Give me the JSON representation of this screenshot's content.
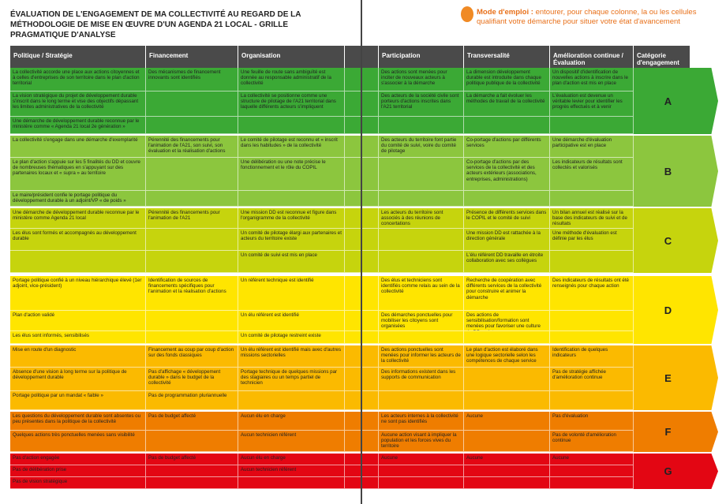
{
  "header": {
    "title": "ÉVALUATION DE L'ENGAGEMENT DE MA COLLECTIVITÉ AU REGARD DE LA MÉTHODOLOGIE DE MISE EN ŒUVRE D'UN AGENDA 21 LOCAL - GRILLE PRAGMATIQUE D'ANALYSE",
    "mode_label": "Mode d'emploi :",
    "mode_text": "entourer, pour chaque colonne, la ou les cellules qualifiant votre démarche pour situer votre état d'avancement"
  },
  "table": {
    "columns": [
      "Politique / Stratégie",
      "Financement",
      "Organisation",
      "Participation",
      "Transversalité",
      "Amélioration continue / Évaluation",
      "Catégorie d'engagement"
    ],
    "bands": [
      {
        "category": "A",
        "color": "#3ba935",
        "rows": [
          [
            "La collectivité accorde une place aux actions citoyennes et à celles d'entreprises de son territoire dans le plan d'action territorial",
            "Des mécanismes de financement innovants sont identifiés",
            "Une feuille de route sans ambiguïté est donnée au responsable administratif de la collectivité",
            "Des actions sont menées pour inciter de nouveaux acteurs à s'associer à la démarche",
            "La dimension développement durable est introduite dans chaque politique publique de la collectivité",
            "Un dispositif d'identification de nouvelles actions à inscrire dans le plan d'action est mis en place"
          ],
          [
            "La vision stratégique du projet de développement durable s'inscrit dans le long terme et vise des objectifs dépassant les limites administratives de la collectivité",
            null,
            "La collectivité se positionne comme une structure de pilotage de l'A21 territorial dans laquelle différents acteurs s'impliquent",
            "Des acteurs de la société civile sont porteurs d'actions inscrites dans l'A21 territorial",
            "La démarche a fait évoluer les méthodes de travail de la collectivité",
            "L'évaluation est devenue un véritable levier pour identifier les progrès effectués et à venir"
          ],
          [
            "Une démarche de développement durable reconnue par le ministère comme « Agenda 21 local 2e génération »",
            null,
            null,
            null,
            null,
            null
          ]
        ]
      },
      {
        "category": "B",
        "color": "#8cc63e",
        "rows": [
          [
            "La collectivité s'engage dans une démarche d'exemplarité",
            "Pérennité des financements pour l'animation de l'A21, son suivi, son évaluation et la réalisation d'actions",
            "Le comité de pilotage est reconnu et « inscrit dans les habitudes » de la collectivité",
            "Des acteurs du territoire font partie du comité de suivi, voire du comité de pilotage",
            "Co-portage d'actions par différents services",
            "Une démarche d'évaluation participative est en place"
          ],
          [
            "Le plan d'action s'appuie sur les 5 finalités du DD et couvre de nombreuses thématiques en s'appuyant sur des partenaires locaux et « supra » au territoire",
            null,
            "Une délibération ou une note précise le fonctionnement et le rôle du COPIL",
            null,
            "Co-portage d'actions par des services de la collectivité et des acteurs extérieurs (associations, entreprises, administrations)",
            "Les indicateurs de résultats sont collectés et valorisés"
          ],
          [
            "Le maire/président confie le portage politique du développement durable à un adjoint/VP « de poids »",
            null,
            null,
            null,
            null,
            null
          ]
        ]
      },
      {
        "category": "C",
        "color": "#c6d40d",
        "rows": [
          [
            "Une démarche de développement durable reconnue par le ministère comme Agenda 21 local",
            "Pérennité des financements pour l'animation de l'A21",
            "Une mission DD est reconnue et figure dans l'organigramme de la collectivité",
            "Les acteurs du territoire sont associés à des réunions de concertations",
            "Présence de différents services dans le COPIL et le comité de suivi",
            "Un bilan annuel est réalisé sur la base des indicateurs de suivi et de résultats"
          ],
          [
            "Les élus sont formés et accompagnés au développement durable",
            null,
            "Un comité de pilotage élargi aux partenaires et acteurs du territoire existe",
            null,
            "Une mission DD est rattachée à la direction générale",
            "Une méthode d'évaluation est définie par les élus"
          ],
          [
            null,
            null,
            "Un comité de suivi est mis en place",
            null,
            "L'élu référent DD travaille en étroite collaboration avec ses collègues",
            null
          ]
        ]
      },
      {
        "category": "D",
        "color": "#ffe500",
        "rows": [
          [
            "Portage politique confié à un niveau hiérarchique élevé (1er adjoint, vice-président)",
            "Identification de sources de financements spécifiques pour l'animation et la réalisation d'actions",
            "Un référent technique est identifié",
            "Des élus et techniciens sont identifiés comme relais au sein de la collectivité",
            "Recherche de coopération avec différents services de la collectivité pour construire et animer la démarche",
            "Des indicateurs de résultats ont été renseignés pour chaque action"
          ],
          [
            "Plan d'action validé",
            null,
            "Un élu référent est identifié",
            "Des démarches ponctuelles pour mobiliser les citoyens sont organisées",
            "Des actions de sensibilisation/formation sont menées pour favoriser une culture du DD en interne",
            null
          ],
          [
            "Les élus sont informés, sensibilisés",
            null,
            "Un comité de pilotage restreint existe",
            null,
            null,
            null
          ]
        ]
      },
      {
        "category": "E",
        "color": "#fbba00",
        "rows": [
          [
            "Mise en route d'un diagnostic",
            "Financement au coup par coup d'action sur des fonds classiques",
            "Un élu référent est identifié mais avec d'autres missions sectorielles",
            "Des actions ponctuelles sont menées pour informer les acteurs de la collectivité",
            "Le plan d'action est élaboré dans une logique sectorielle selon les compétences de chaque service",
            "Identification de quelques indicateurs"
          ],
          [
            "Absence d'une vision à long terme sur la politique de développement durable",
            "Pas d'affichage « développement durable » dans le budget de la collectivité",
            "Portage technique de quelques missions par des stagiaires ou un temps partiel de technicien",
            "Des informations existent dans les supports de communication",
            null,
            "Pas de stratégie affichée d'amélioration continue"
          ],
          [
            "Portage politique par un mandat « faible »",
            "Pas de programmation pluriannuelle",
            null,
            null,
            null,
            null
          ]
        ]
      },
      {
        "category": "F",
        "color": "#ef7d00",
        "rows": [
          [
            "Les questions du développement durable sont absentes ou peu présentes dans la politique de la collectivité",
            "Pas de budget affecté",
            "Aucun élu en charge",
            "Les acteurs internes à la collectivité ne sont pas identifiés",
            "Aucune",
            "Pas d'évaluation"
          ],
          [
            "Quelques actions très ponctuelles menées sans visibilité",
            null,
            "Aucun technicien référent",
            "Aucune action visant à impliquer la population et les forces vives du territoire",
            null,
            "Pas de volonté d'amélioration continue"
          ]
        ]
      },
      {
        "category": "G",
        "color": "#e30613",
        "rows": [
          [
            "Pas d'action engagée",
            "Pas de budget affecté",
            "Aucun élu en charge",
            "Aucune",
            "Aucune",
            "Aucune"
          ],
          [
            "Pas de délibération prise",
            null,
            "Aucun technicien référent",
            null,
            null,
            null
          ],
          [
            "Pas de vision stratégique",
            null,
            null,
            null,
            null,
            null
          ]
        ]
      }
    ]
  }
}
